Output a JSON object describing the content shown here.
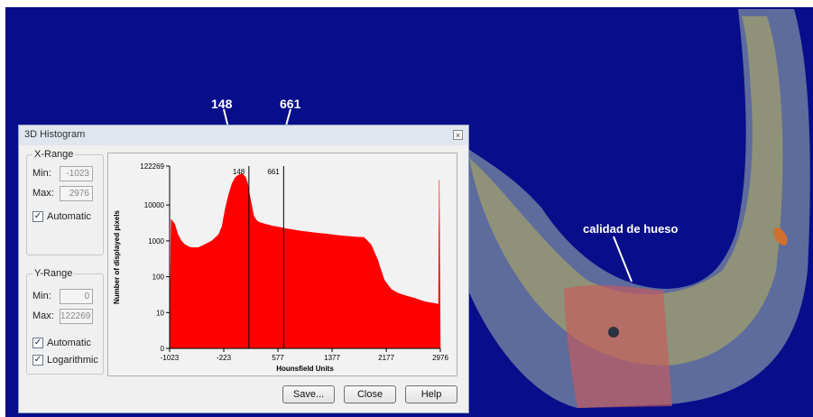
{
  "annotations": {
    "marker1": "148",
    "marker2": "661",
    "bone_label": "calidad de hueso"
  },
  "dialog": {
    "title": "3D Histogram",
    "close_icon": "close-icon",
    "x_range": {
      "title": "X-Range",
      "min_label": "Min:",
      "min_value": "-1023",
      "max_label": "Max:",
      "max_value": "2976",
      "automatic_label": "Automatic",
      "automatic_checked": true
    },
    "y_range": {
      "title": "Y-Range",
      "min_label": "Min:",
      "min_value": "0",
      "max_label": "Max:",
      "max_value": "122269",
      "automatic_label": "Automatic",
      "automatic_checked": true,
      "log_label": "Logarithmic",
      "log_checked": true
    },
    "buttons": {
      "save": "Save...",
      "close": "Close",
      "help": "Help"
    }
  },
  "chart_data": {
    "type": "area",
    "xlabel": "Hounsfield Units",
    "ylabel": "Number of displayed pixels",
    "xlim": [
      -1023,
      2976
    ],
    "ylim": [
      0,
      122269
    ],
    "log_scale_y": true,
    "x_ticks": [
      -1023,
      -223,
      577,
      1377,
      2177,
      2976
    ],
    "y_ticks": [
      "0",
      "10",
      "100",
      "1000",
      "10000",
      "122269"
    ],
    "marker_lines": [
      {
        "x": 148,
        "label": "148"
      },
      {
        "x": 661,
        "label": "661"
      }
    ],
    "color": "#ff0000",
    "series": [
      {
        "x": [
          -1023,
          -1000,
          -950,
          -900,
          -850,
          -800,
          -750,
          -700,
          -600,
          -500,
          -400,
          -300,
          -250,
          -200,
          -150,
          -100,
          -50,
          0,
          50,
          100,
          130,
          148,
          180,
          220,
          260,
          300,
          350,
          400,
          500,
          600,
          700,
          900,
          1100,
          1300,
          1500,
          1700,
          1850,
          1950,
          2050,
          2100,
          2150,
          2250,
          2350,
          2450,
          2600,
          2750,
          2900,
          2950,
          2960,
          2976
        ],
        "y": [
          1,
          4000,
          3000,
          1500,
          1000,
          800,
          700,
          650,
          650,
          800,
          1000,
          1500,
          2500,
          8000,
          20000,
          40000,
          60000,
          70000,
          75000,
          60000,
          40000,
          25000,
          12000,
          5000,
          3800,
          3300,
          3100,
          2900,
          2600,
          2400,
          2200,
          1900,
          1700,
          1550,
          1400,
          1300,
          1250,
          800,
          300,
          150,
          80,
          45,
          35,
          30,
          25,
          20,
          18,
          17,
          50000,
          1
        ]
      }
    ]
  }
}
